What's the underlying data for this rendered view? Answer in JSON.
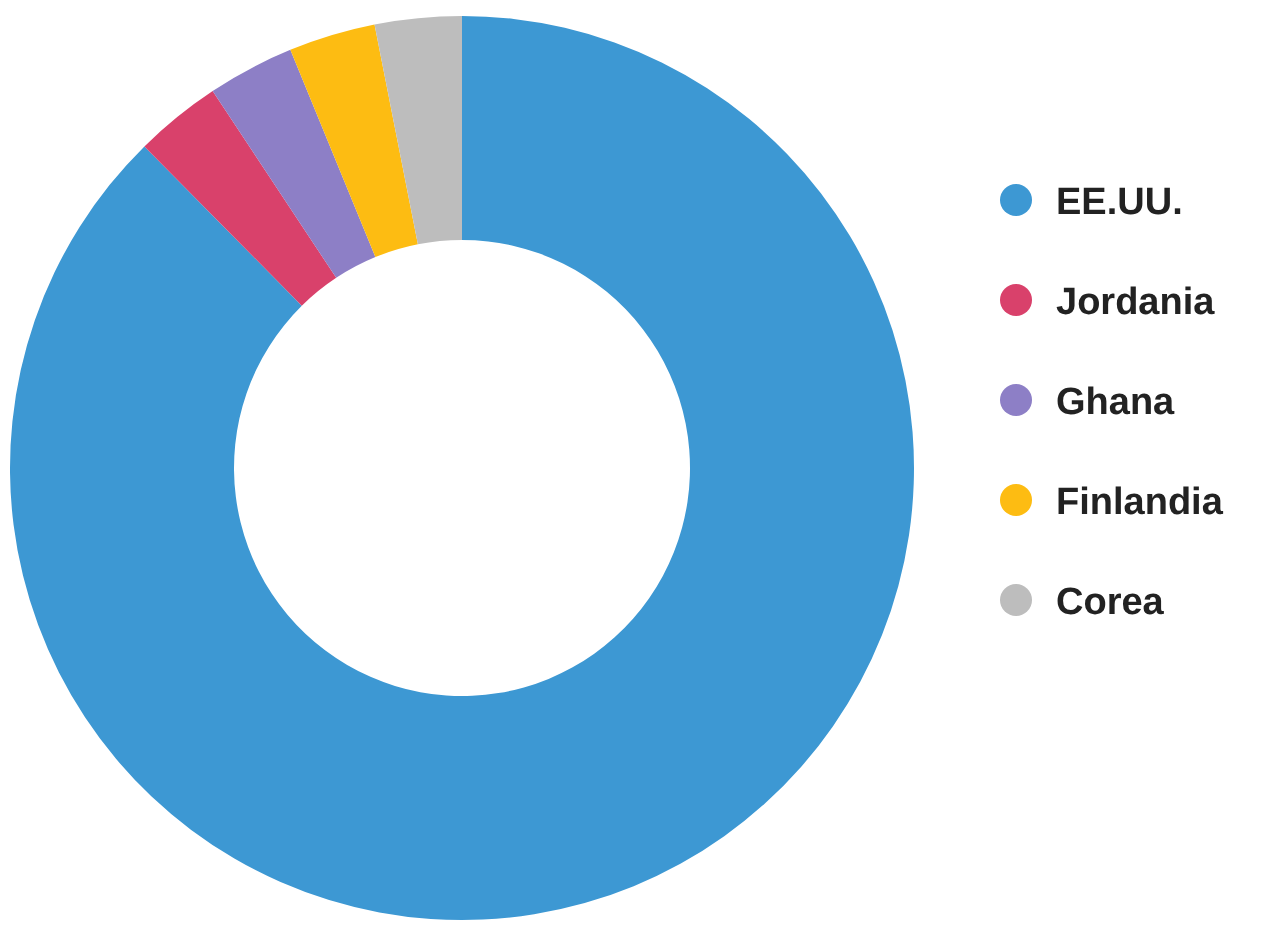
{
  "chart_data": {
    "type": "donut",
    "categories": [
      "EE.UU.",
      "Jordania",
      "Ghana",
      "Finlandia",
      "Corea"
    ],
    "values": [
      87.6,
      3.1,
      3.1,
      3.1,
      3.1
    ],
    "colors": [
      "#3d98d3",
      "#d9416b",
      "#8d7fc6",
      "#fdbc12",
      "#bdbdbd"
    ],
    "legend": "right"
  }
}
